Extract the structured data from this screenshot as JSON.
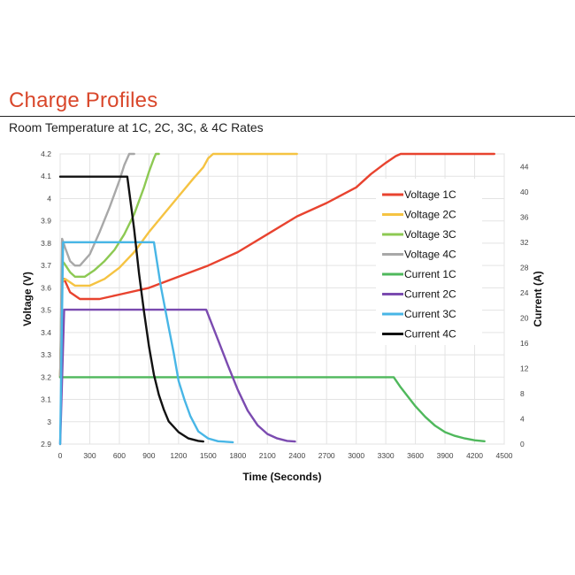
{
  "slide": {
    "title": "Charge Profiles",
    "subtitle": "Room Temperature at 1C, 2C, 3C, & 4C Rates"
  },
  "chart_data": {
    "type": "line",
    "title": "",
    "xlabel": "Time (Seconds)",
    "ylabel_left": "Voltage (V)",
    "ylabel_right": "Current (A)",
    "xlim": [
      0,
      4500
    ],
    "ylim_left": [
      2.9,
      4.2
    ],
    "ylim_right": [
      0,
      46
    ],
    "x_ticks": [
      "0",
      "300",
      "600",
      "900",
      "1200",
      "1500",
      "1800",
      "2100",
      "2400",
      "2700",
      "3000",
      "3300",
      "3600",
      "3900",
      "4200",
      "4500"
    ],
    "y_left_ticks": [
      "2.9",
      "3",
      "3.1",
      "3.2",
      "3.3",
      "3.4",
      "3.5",
      "3.6",
      "3.7",
      "3.8",
      "3.9",
      "4",
      "4.1",
      "4.2"
    ],
    "y_right_ticks": [
      "0",
      "4",
      "8",
      "12",
      "16",
      "20",
      "24",
      "28",
      "32",
      "36",
      "40",
      "44"
    ],
    "grid": true,
    "legend_position": "right",
    "series": [
      {
        "name": "Voltage 1C",
        "axis": "left",
        "color": "#e8432f",
        "points": [
          [
            0,
            3.2
          ],
          [
            20,
            3.62
          ],
          [
            40,
            3.64
          ],
          [
            100,
            3.58
          ],
          [
            200,
            3.55
          ],
          [
            400,
            3.55
          ],
          [
            600,
            3.57
          ],
          [
            900,
            3.6
          ],
          [
            1200,
            3.65
          ],
          [
            1500,
            3.7
          ],
          [
            1800,
            3.76
          ],
          [
            2100,
            3.84
          ],
          [
            2400,
            3.92
          ],
          [
            2700,
            3.98
          ],
          [
            3000,
            4.05
          ],
          [
            3150,
            4.11
          ],
          [
            3300,
            4.16
          ],
          [
            3400,
            4.19
          ],
          [
            3450,
            4.2
          ],
          [
            4400,
            4.2
          ]
        ]
      },
      {
        "name": "Voltage 2C",
        "axis": "left",
        "color": "#f5c342",
        "points": [
          [
            0,
            3.2
          ],
          [
            20,
            3.63
          ],
          [
            50,
            3.64
          ],
          [
            150,
            3.61
          ],
          [
            300,
            3.61
          ],
          [
            450,
            3.64
          ],
          [
            600,
            3.69
          ],
          [
            750,
            3.76
          ],
          [
            900,
            3.85
          ],
          [
            1050,
            3.93
          ],
          [
            1200,
            4.01
          ],
          [
            1350,
            4.09
          ],
          [
            1450,
            4.14
          ],
          [
            1500,
            4.18
          ],
          [
            1550,
            4.2
          ],
          [
            2400,
            4.2
          ]
        ]
      },
      {
        "name": "Voltage 3C",
        "axis": "left",
        "color": "#8dc953",
        "points": [
          [
            0,
            3.2
          ],
          [
            20,
            3.72
          ],
          [
            40,
            3.71
          ],
          [
            100,
            3.67
          ],
          [
            150,
            3.65
          ],
          [
            250,
            3.65
          ],
          [
            350,
            3.68
          ],
          [
            450,
            3.72
          ],
          [
            550,
            3.77
          ],
          [
            650,
            3.84
          ],
          [
            750,
            3.93
          ],
          [
            850,
            4.05
          ],
          [
            900,
            4.12
          ],
          [
            950,
            4.18
          ],
          [
            970,
            4.2
          ],
          [
            1000,
            4.2
          ]
        ]
      },
      {
        "name": "Voltage 4C",
        "axis": "left",
        "color": "#a8a8a8",
        "points": [
          [
            0,
            3.2
          ],
          [
            20,
            3.82
          ],
          [
            50,
            3.78
          ],
          [
            100,
            3.72
          ],
          [
            150,
            3.7
          ],
          [
            200,
            3.7
          ],
          [
            300,
            3.75
          ],
          [
            400,
            3.85
          ],
          [
            500,
            3.96
          ],
          [
            600,
            4.08
          ],
          [
            650,
            4.15
          ],
          [
            700,
            4.2
          ],
          [
            750,
            4.2
          ]
        ]
      },
      {
        "name": "Current 1C",
        "axis": "right",
        "color": "#4fb85c",
        "points": [
          [
            0,
            10.6
          ],
          [
            3380,
            10.6
          ],
          [
            3450,
            9.0
          ],
          [
            3600,
            6.0
          ],
          [
            3700,
            4.3
          ],
          [
            3800,
            2.9
          ],
          [
            3900,
            1.9
          ],
          [
            4000,
            1.3
          ],
          [
            4100,
            0.9
          ],
          [
            4200,
            0.6
          ],
          [
            4300,
            0.45
          ]
        ]
      },
      {
        "name": "Current 2C",
        "axis": "right",
        "color": "#7b4bb0",
        "points": [
          [
            0,
            0
          ],
          [
            40,
            21.3
          ],
          [
            1480,
            21.3
          ],
          [
            1600,
            16.5
          ],
          [
            1700,
            12.5
          ],
          [
            1800,
            8.6
          ],
          [
            1900,
            5.3
          ],
          [
            2000,
            3.0
          ],
          [
            2100,
            1.6
          ],
          [
            2200,
            0.9
          ],
          [
            2300,
            0.5
          ],
          [
            2380,
            0.4
          ]
        ]
      },
      {
        "name": "Current 3C",
        "axis": "right",
        "color": "#48b6e6",
        "points": [
          [
            0,
            0
          ],
          [
            30,
            32
          ],
          [
            950,
            32
          ],
          [
            1020,
            25.0
          ],
          [
            1100,
            18.5
          ],
          [
            1150,
            14.5
          ],
          [
            1200,
            10.0
          ],
          [
            1260,
            7.0
          ],
          [
            1320,
            4.4
          ],
          [
            1400,
            2.0
          ],
          [
            1500,
            0.9
          ],
          [
            1600,
            0.45
          ],
          [
            1750,
            0.3
          ]
        ]
      },
      {
        "name": "Current 4C",
        "axis": "right",
        "color": "#111111",
        "points": [
          [
            0,
            42.4
          ],
          [
            680,
            42.4
          ],
          [
            750,
            34.0
          ],
          [
            800,
            27.0
          ],
          [
            850,
            21.0
          ],
          [
            900,
            15.5
          ],
          [
            950,
            11.0
          ],
          [
            1000,
            7.8
          ],
          [
            1050,
            5.5
          ],
          [
            1100,
            3.6
          ],
          [
            1200,
            1.9
          ],
          [
            1300,
            0.9
          ],
          [
            1400,
            0.5
          ],
          [
            1450,
            0.4
          ]
        ]
      }
    ]
  }
}
